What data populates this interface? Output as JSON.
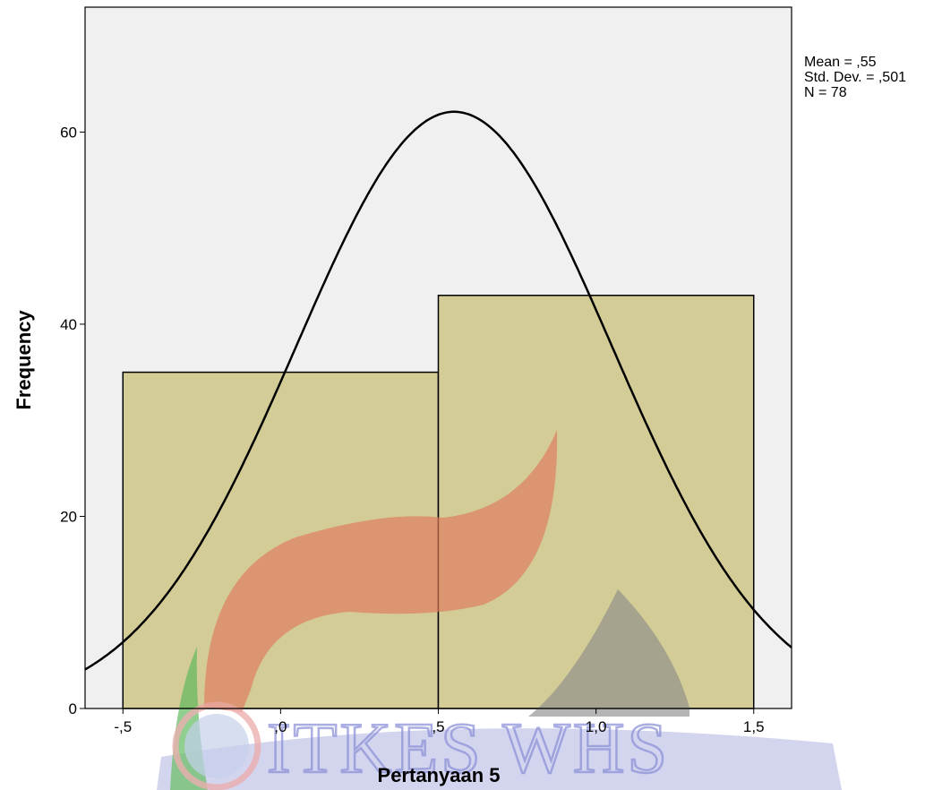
{
  "chart_data": {
    "type": "bar",
    "subtype": "histogram",
    "title": "",
    "xlabel": "Pertanyaan 5",
    "ylabel": "Frequency",
    "bins": [
      {
        "from": -0.5,
        "to": 0.5,
        "count": 35
      },
      {
        "from": 0.5,
        "to": 1.5,
        "count": 43
      }
    ],
    "normal_curve": {
      "mean": 0.55,
      "sd": 0.501,
      "n": 78,
      "bin_width": 1.0
    },
    "xlim": [
      -0.62,
      1.62
    ],
    "ylim": [
      0,
      73
    ],
    "x_ticks": [
      {
        "value": -0.5,
        "label": "-,5"
      },
      {
        "value": 0.0,
        "label": ",0"
      },
      {
        "value": 0.5,
        "label": ",5"
      },
      {
        "value": 1.0,
        "label": "1,0"
      },
      {
        "value": 1.5,
        "label": "1,5"
      }
    ],
    "y_ticks": [
      {
        "value": 0,
        "label": "0"
      },
      {
        "value": 20,
        "label": "20"
      },
      {
        "value": 40,
        "label": "40"
      },
      {
        "value": 60,
        "label": "60"
      }
    ],
    "stats": {
      "mean": "Mean = ,55",
      "std_dev": "Std. Dev. = ,501",
      "n": "N = 78"
    },
    "grid": false,
    "legend": "none",
    "colors": {
      "plot_background": "#f0f0f0",
      "bar_fill": "#d3cc96",
      "bar_stroke": "#000000",
      "curve": "#000000"
    }
  },
  "watermark": {
    "text": "ITKES WHS",
    "colors": {
      "red_shape": "#e07a5f",
      "green_shape": "#5cb85c",
      "grey_shape": "#8a8a8a",
      "blue_band": "#6a70c8",
      "seal_ring": "#e8a0a0"
    }
  }
}
